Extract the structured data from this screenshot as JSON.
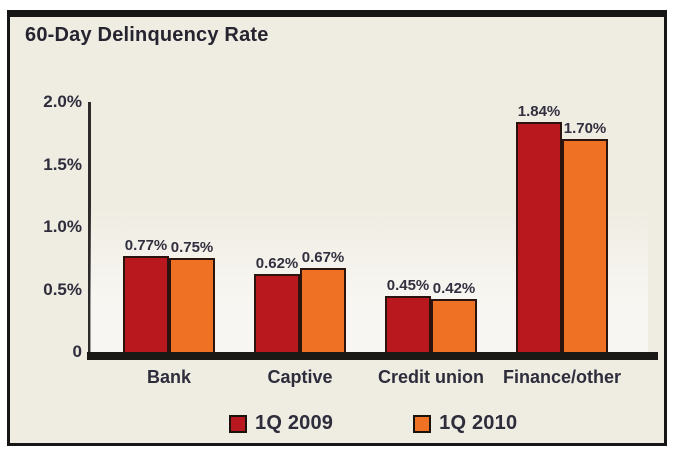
{
  "title": "60-Day Delinquency Rate",
  "chart_data": {
    "type": "bar",
    "title": "60-Day Delinquency Rate",
    "categories": [
      "Bank",
      "Captive",
      "Credit union",
      "Finance/other"
    ],
    "series": [
      {
        "name": "1Q 2009",
        "color": "#b9191e",
        "values": [
          0.77,
          0.62,
          0.45,
          1.84
        ],
        "labels": [
          "0.77%",
          "0.62%",
          "0.45%",
          "1.84%"
        ]
      },
      {
        "name": "1Q 2010",
        "color": "#ef7123",
        "values": [
          0.75,
          0.67,
          0.42,
          1.7
        ],
        "labels": [
          "0.75%",
          "0.67%",
          "0.42%",
          "1.70%"
        ]
      }
    ],
    "xlabel": "",
    "ylabel": "",
    "ylim": [
      0,
      2.0
    ],
    "yticks": [
      {
        "value": 2.0,
        "label": "2.0%"
      },
      {
        "value": 1.5,
        "label": "1.5%"
      },
      {
        "value": 1.0,
        "label": "1.0%"
      },
      {
        "value": 0.5,
        "label": "0.5%"
      },
      {
        "value": 0.0,
        "label": "0"
      }
    ],
    "grid": false,
    "legend_position": "bottom"
  },
  "colors": {
    "panel_background": "#efece2",
    "frame_border": "#161616",
    "series_1": "#b9191e",
    "series_2": "#ef7123",
    "text": "#2e2d3b",
    "bar_outline": "#2b130e"
  }
}
